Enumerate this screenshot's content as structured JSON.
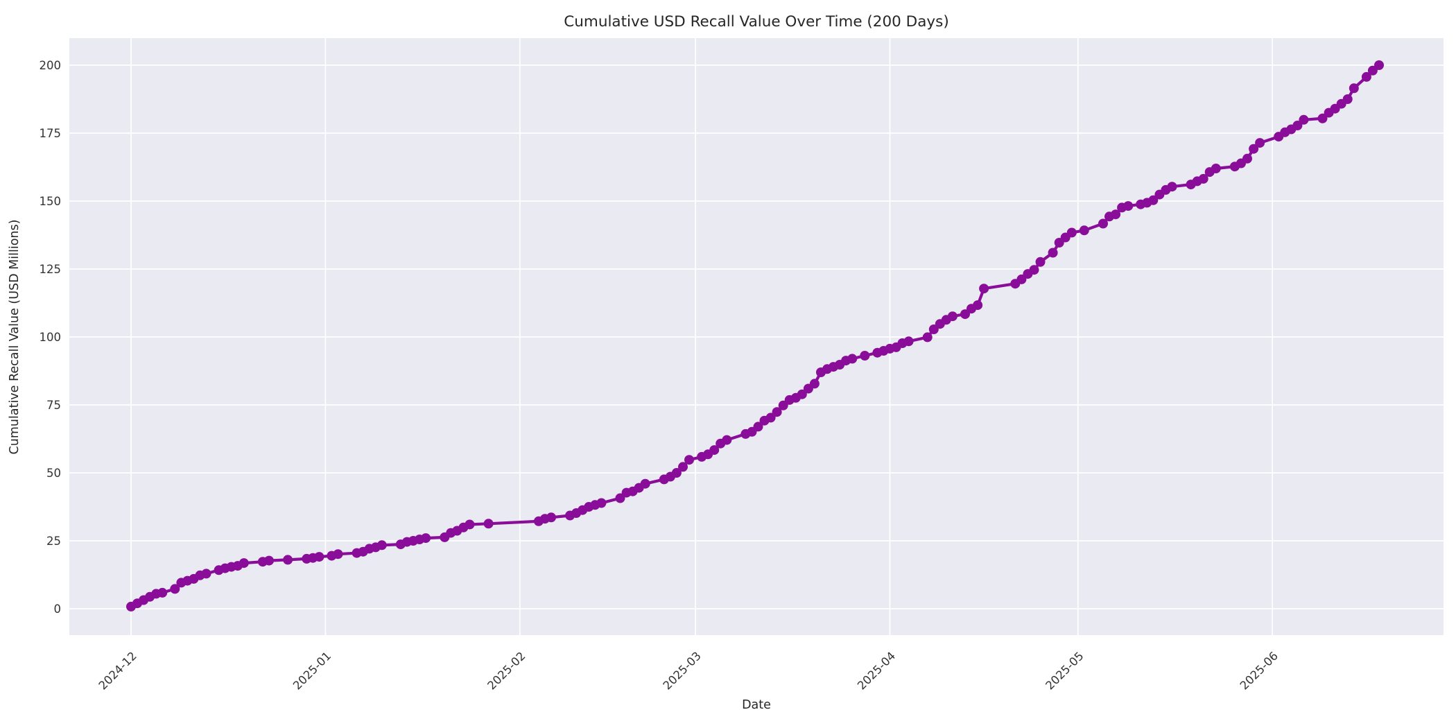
{
  "chart_data": {
    "type": "line",
    "title": "Cumulative USD Recall Value Over Time (200 Days)",
    "xlabel": "Date",
    "ylabel": "Cumulative Recall Value (USD Millions)",
    "x_tick_labels": [
      "2024-12",
      "2025-01",
      "2025-02",
      "2025-03",
      "2025-04",
      "2025-05",
      "2025-06"
    ],
    "y_ticks": [
      0,
      25,
      50,
      75,
      100,
      125,
      150,
      175,
      200
    ],
    "ylim": [
      0,
      200
    ],
    "x_range_days": 200,
    "grid": true,
    "legend_visible": false,
    "line_color": "#8a0d99",
    "marker": "o",
    "marker_color": "#8a0d99",
    "plot_bg_color": "#eaeaf2",
    "grid_color": "#ffffff",
    "text_color": "#262626",
    "tick_label_color": "#333333",
    "series": [
      {
        "name": "Cumulative Recall Value",
        "x": [
          "2024-12-01",
          "2024-12-02",
          "2024-12-03",
          "2024-12-04",
          "2024-12-05",
          "2024-12-06",
          "2024-12-08",
          "2024-12-09",
          "2024-12-10",
          "2024-12-11",
          "2024-12-12",
          "2024-12-13",
          "2024-12-15",
          "2024-12-16",
          "2024-12-17",
          "2024-12-18",
          "2024-12-19",
          "2024-12-22",
          "2024-12-23",
          "2024-12-26",
          "2024-12-29",
          "2024-12-30",
          "2024-12-31",
          "2025-01-02",
          "2025-01-03",
          "2025-01-06",
          "2025-01-07",
          "2025-01-08",
          "2025-01-09",
          "2025-01-10",
          "2025-01-13",
          "2025-01-14",
          "2025-01-15",
          "2025-01-16",
          "2025-01-17",
          "2025-01-20",
          "2025-01-21",
          "2025-01-22",
          "2025-01-23",
          "2025-01-24",
          "2025-01-27",
          "2025-02-04",
          "2025-02-05",
          "2025-02-06",
          "2025-02-09",
          "2025-02-10",
          "2025-02-11",
          "2025-02-12",
          "2025-02-13",
          "2025-02-14",
          "2025-02-17",
          "2025-02-18",
          "2025-02-19",
          "2025-02-20",
          "2025-02-21",
          "2025-02-24",
          "2025-02-25",
          "2025-02-26",
          "2025-02-27",
          "2025-02-28",
          "2025-03-02",
          "2025-03-03",
          "2025-03-04",
          "2025-03-05",
          "2025-03-06",
          "2025-03-09",
          "2025-03-10",
          "2025-03-11",
          "2025-03-12",
          "2025-03-13",
          "2025-03-14",
          "2025-03-15",
          "2025-03-16",
          "2025-03-17",
          "2025-03-18",
          "2025-03-19",
          "2025-03-20",
          "2025-03-21",
          "2025-03-22",
          "2025-03-23",
          "2025-03-24",
          "2025-03-25",
          "2025-03-26",
          "2025-03-28",
          "2025-03-30",
          "2025-03-31",
          "2025-04-01",
          "2025-04-02",
          "2025-04-03",
          "2025-04-04",
          "2025-04-07",
          "2025-04-08",
          "2025-04-09",
          "2025-04-10",
          "2025-04-11",
          "2025-04-13",
          "2025-04-14",
          "2025-04-15",
          "2025-04-16",
          "2025-04-21",
          "2025-04-22",
          "2025-04-23",
          "2025-04-24",
          "2025-04-25",
          "2025-04-27",
          "2025-04-28",
          "2025-04-29",
          "2025-04-30",
          "2025-05-02",
          "2025-05-05",
          "2025-05-06",
          "2025-05-07",
          "2025-05-08",
          "2025-05-09",
          "2025-05-11",
          "2025-05-12",
          "2025-05-13",
          "2025-05-14",
          "2025-05-15",
          "2025-05-16",
          "2025-05-19",
          "2025-05-20",
          "2025-05-21",
          "2025-05-22",
          "2025-05-23",
          "2025-05-26",
          "2025-05-27",
          "2025-05-28",
          "2025-05-29",
          "2025-05-30",
          "2025-06-02",
          "2025-06-03",
          "2025-06-04",
          "2025-06-05",
          "2025-06-06",
          "2025-06-09",
          "2025-06-10",
          "2025-06-11",
          "2025-06-12",
          "2025-06-13",
          "2025-06-14",
          "2025-06-16",
          "2025-06-17",
          "2025-06-18"
        ],
        "y": [
          0.8,
          2.0,
          3.2,
          4.4,
          5.5,
          5.9,
          7.3,
          9.6,
          10.3,
          11.0,
          12.3,
          12.9,
          14.2,
          14.9,
          15.4,
          15.8,
          16.8,
          17.3,
          17.7,
          18.0,
          18.4,
          18.7,
          19.1,
          19.5,
          20.1,
          20.5,
          21.0,
          22.1,
          22.6,
          23.4,
          23.7,
          24.6,
          25.0,
          25.5,
          26.0,
          26.3,
          27.9,
          28.7,
          29.9,
          31.0,
          31.3,
          32.2,
          33.1,
          33.6,
          34.3,
          35.2,
          36.3,
          37.5,
          38.2,
          38.9,
          40.7,
          42.7,
          43.2,
          44.5,
          46.0,
          47.6,
          48.6,
          50.0,
          52.2,
          54.8,
          55.9,
          56.8,
          58.4,
          60.8,
          62.1,
          64.3,
          65.1,
          67.0,
          69.2,
          70.3,
          72.4,
          74.8,
          76.8,
          77.6,
          78.9,
          81.0,
          82.8,
          87.0,
          88.2,
          89.0,
          89.8,
          91.3,
          92.0,
          93.1,
          94.2,
          94.9,
          95.7,
          96.2,
          97.7,
          98.4,
          99.9,
          102.8,
          104.8,
          106.3,
          107.6,
          108.4,
          110.4,
          111.7,
          117.8,
          119.6,
          121.2,
          123.2,
          124.7,
          127.6,
          131.0,
          134.7,
          136.6,
          138.4,
          139.2,
          141.7,
          144.3,
          145.1,
          147.6,
          148.2,
          148.8,
          149.4,
          150.3,
          152.4,
          154.1,
          155.3,
          156.1,
          157.3,
          158.2,
          160.7,
          162.0,
          162.7,
          163.9,
          165.6,
          169.2,
          171.4,
          173.7,
          175.3,
          176.4,
          177.8,
          179.9,
          180.4,
          182.5,
          184.0,
          185.8,
          187.5,
          191.5,
          195.7,
          198.0,
          200.0
        ]
      }
    ]
  }
}
